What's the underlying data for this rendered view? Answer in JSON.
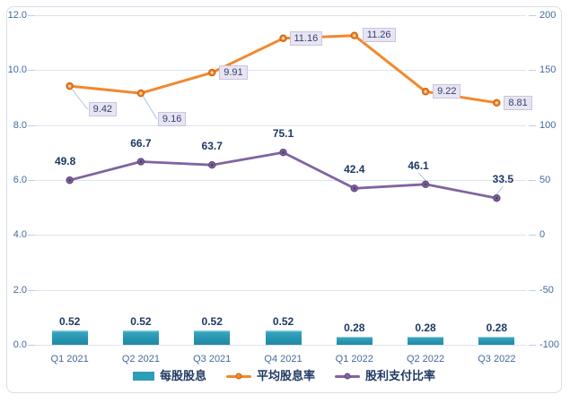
{
  "chart_data": {
    "type": "combo-bar-line",
    "categories": [
      "Q1 2021",
      "Q2 2021",
      "Q3 2021",
      "Q4 2021",
      "Q1 2022",
      "Q2 2022",
      "Q3 2022"
    ],
    "series": [
      {
        "id": "dividend-per-share",
        "name": "每股股息",
        "type": "bar",
        "axis": "left",
        "color": "#2E9DB8",
        "values": [
          0.52,
          0.52,
          0.52,
          0.52,
          0.28,
          0.28,
          0.28
        ],
        "labels": [
          "0.52",
          "0.52",
          "0.52",
          "0.52",
          "0.28",
          "0.28",
          "0.28"
        ],
        "label_style": "bold"
      },
      {
        "id": "average-dividend-yield",
        "name": "平均股息率",
        "type": "line",
        "axis": "left",
        "color": "#F2882E",
        "marker_border": "#D2600A",
        "marker_center": "#FDE4CC",
        "values": [
          9.42,
          9.16,
          9.91,
          11.16,
          11.26,
          9.22,
          8.81
        ],
        "labels": [
          "9.42",
          "9.16",
          "9.91",
          "11.16",
          "11.26",
          "9.22",
          "8.81"
        ],
        "label_style": "boxed"
      },
      {
        "id": "payout-ratio",
        "name": "股利支付比率",
        "type": "line",
        "axis": "right",
        "color": "#8064A2",
        "marker_border": "#5F497A",
        "marker_center": "#4D3A66",
        "values": [
          49.8,
          66.7,
          63.7,
          75.1,
          42.4,
          46.1,
          33.5
        ],
        "labels": [
          "49.8",
          "66.7",
          "63.7",
          "75.1",
          "42.4",
          "46.1",
          "33.5"
        ],
        "label_style": "bold"
      }
    ],
    "left_axis": {
      "min": 0,
      "max": 12,
      "step": 2,
      "tick_labels": [
        "0.0",
        "2.0",
        "4.0",
        "6.0",
        "8.0",
        "10.0",
        "12.0"
      ]
    },
    "right_axis": {
      "min": -100,
      "max": 200,
      "step": 50,
      "tick_labels": [
        "-100",
        "-50",
        "0",
        "50",
        "100",
        "150",
        "200"
      ]
    },
    "grid": true,
    "legend_position": "bottom",
    "colors": {
      "grid": "#DCE3F0",
      "tick_text": "#44699E",
      "data_label_text": "#1F3864",
      "boxed_label_bg": "#E8E5F2",
      "boxed_label_border": "#CBC4DE",
      "leader_line": "#A8C6E5"
    }
  }
}
